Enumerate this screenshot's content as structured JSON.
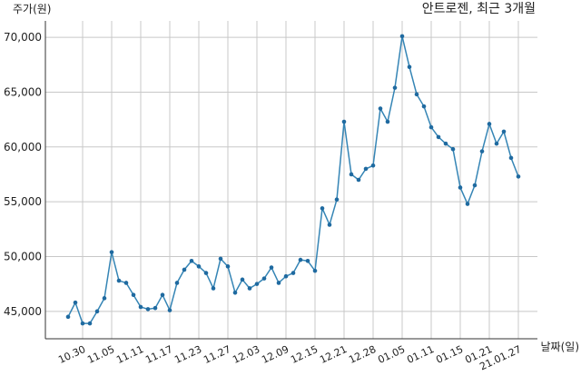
{
  "chart_data": {
    "type": "line",
    "title": "안트로젠, 최근 3개월",
    "y_label": "주가(원)",
    "x_label": "날짜(일)",
    "color": "#3585b5",
    "marker_color": "#1f6aa0",
    "grid": true,
    "categories": [
      null,
      null,
      "10.30",
      null,
      null,
      null,
      "11.05",
      null,
      null,
      null,
      "11.11",
      null,
      null,
      null,
      "11.17",
      null,
      null,
      null,
      "11.23",
      null,
      null,
      null,
      "11.27",
      null,
      null,
      null,
      "12.03",
      null,
      null,
      null,
      "12.09",
      null,
      null,
      null,
      "12.15",
      null,
      null,
      null,
      "12.21",
      null,
      null,
      null,
      "12.28",
      null,
      null,
      null,
      "01.05",
      null,
      null,
      null,
      "01.11",
      null,
      null,
      null,
      "01.15",
      null,
      null,
      null,
      "01.21",
      null,
      null,
      null,
      "21.01.27"
    ],
    "values": [
      44500,
      45800,
      43900,
      43900,
      45000,
      46200,
      50400,
      47800,
      47600,
      46500,
      45400,
      45200,
      45300,
      46500,
      45100,
      47600,
      48800,
      49600,
      49100,
      48500,
      47100,
      49800,
      49100,
      46700,
      47900,
      47100,
      47500,
      48000,
      49000,
      47600,
      48200,
      48500,
      49700,
      49600,
      48700,
      54400,
      52900,
      55200,
      62300,
      57500,
      57000,
      58000,
      58300,
      63500,
      62300,
      65400,
      70100,
      67300,
      64800,
      63700,
      61800,
      60900,
      60300,
      59800,
      56300,
      54800,
      56500,
      59600,
      62100,
      60300,
      61400,
      59000,
      57300
    ],
    "ylim": [
      42500,
      71500
    ],
    "yticks": [
      {
        "value": 45000,
        "label": "45,000"
      },
      {
        "value": 50000,
        "label": "50,000"
      },
      {
        "value": 55000,
        "label": "55,000"
      },
      {
        "value": 60000,
        "label": "60,000"
      },
      {
        "value": 65000,
        "label": "65,000"
      },
      {
        "value": 70000,
        "label": "70,000"
      }
    ]
  }
}
